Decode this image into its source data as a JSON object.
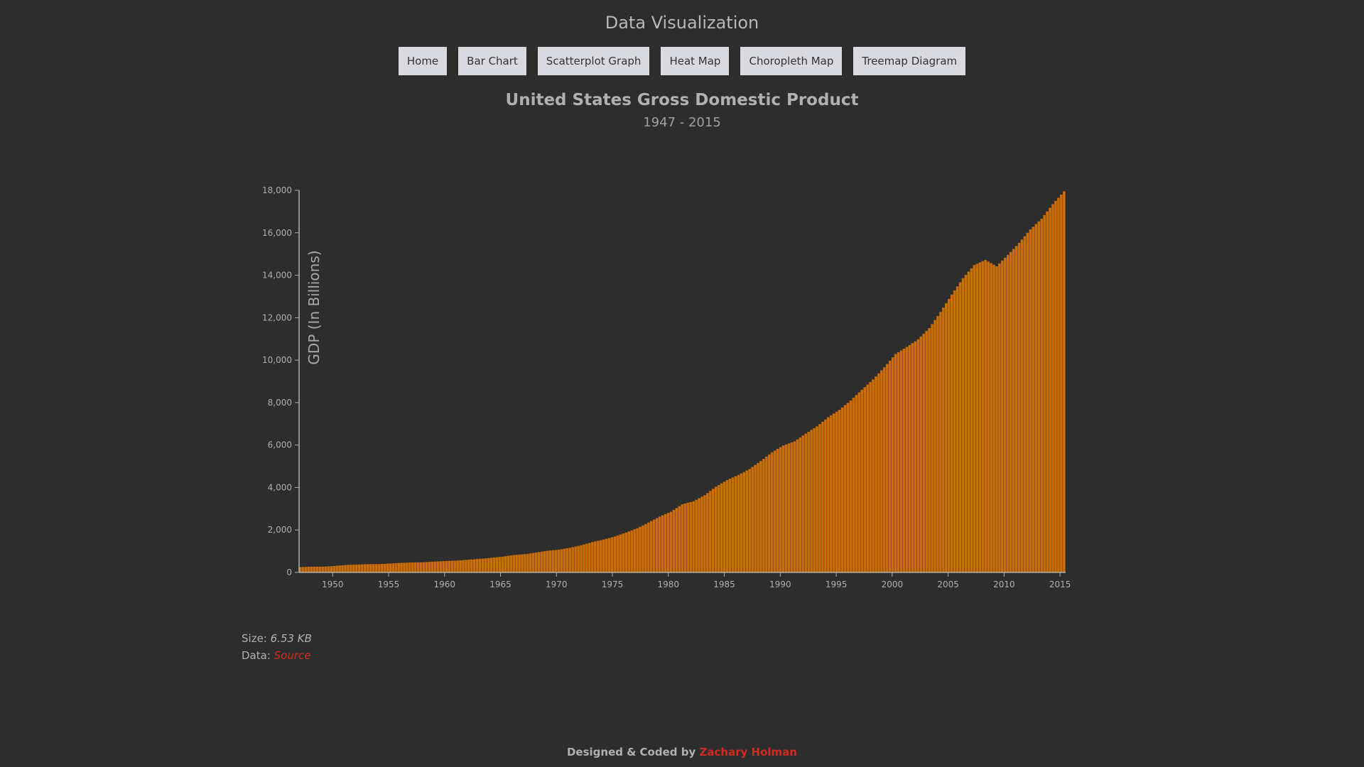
{
  "site": {
    "title": "Data Visualization"
  },
  "nav": {
    "items": [
      {
        "label": "Home"
      },
      {
        "label": "Bar Chart"
      },
      {
        "label": "Scatterplot Graph"
      },
      {
        "label": "Heat Map"
      },
      {
        "label": "Choropleth Map"
      },
      {
        "label": "Treemap Diagram"
      }
    ]
  },
  "meta": {
    "size_label": "Size:",
    "size_value": "6.53 KB",
    "data_label": "Data:",
    "data_link": "Source"
  },
  "footer": {
    "text": "Designed & Coded by",
    "author": "Zachary Holman"
  },
  "colors": {
    "background": "#2d2d2d",
    "bar": "#cc6e08",
    "accent": "#d32a1f"
  },
  "chart_data": {
    "type": "bar",
    "title": "United States Gross Domestic Product",
    "subtitle": "1947 - 2015",
    "ylabel": "GDP (In Billions)",
    "xlabel": "",
    "ylim": [
      0,
      18000
    ],
    "xlim": [
      1947,
      2015.5
    ],
    "xticks": [
      1950,
      1955,
      1960,
      1965,
      1970,
      1975,
      1980,
      1985,
      1990,
      1995,
      2000,
      2005,
      2010,
      2015
    ],
    "yticks": [
      0,
      2000,
      4000,
      6000,
      8000,
      10000,
      12000,
      14000,
      16000,
      18000
    ],
    "ytick_labels": [
      "0",
      "2,000",
      "4,000",
      "6,000",
      "8,000",
      "10,000",
      "12,000",
      "14,000",
      "16,000",
      "18,000"
    ],
    "frequency": "quarterly",
    "annual_values": {
      "years": [
        1947,
        1948,
        1949,
        1950,
        1951,
        1952,
        1953,
        1954,
        1955,
        1956,
        1957,
        1958,
        1959,
        1960,
        1961,
        1962,
        1963,
        1964,
        1965,
        1966,
        1967,
        1968,
        1969,
        1970,
        1971,
        1972,
        1973,
        1974,
        1975,
        1976,
        1977,
        1978,
        1979,
        1980,
        1981,
        1982,
        1983,
        1984,
        1985,
        1986,
        1987,
        1988,
        1989,
        1990,
        1991,
        1992,
        1993,
        1994,
        1995,
        1996,
        1997,
        1998,
        1999,
        2000,
        2001,
        2002,
        2003,
        2004,
        2005,
        2006,
        2007,
        2008,
        2009,
        2010,
        2011,
        2012,
        2013,
        2014,
        2015
      ],
      "values": [
        250,
        270,
        270,
        300,
        350,
        370,
        390,
        390,
        420,
        450,
        470,
        480,
        510,
        540,
        560,
        600,
        640,
        690,
        740,
        820,
        860,
        940,
        1020,
        1070,
        1160,
        1280,
        1430,
        1550,
        1690,
        1880,
        2080,
        2350,
        2630,
        2860,
        3210,
        3350,
        3640,
        4040,
        4350,
        4590,
        4870,
        5250,
        5660,
        5980,
        6170,
        6540,
        6880,
        7310,
        7660,
        8100,
        8610,
        9090,
        9660,
        10290,
        10620,
        10980,
        11510,
        12270,
        13090,
        13860,
        14480,
        14720,
        14420,
        14960,
        15520,
        16160,
        16660,
        17350,
        17950
      ]
    },
    "legend": "none",
    "grid": false
  }
}
